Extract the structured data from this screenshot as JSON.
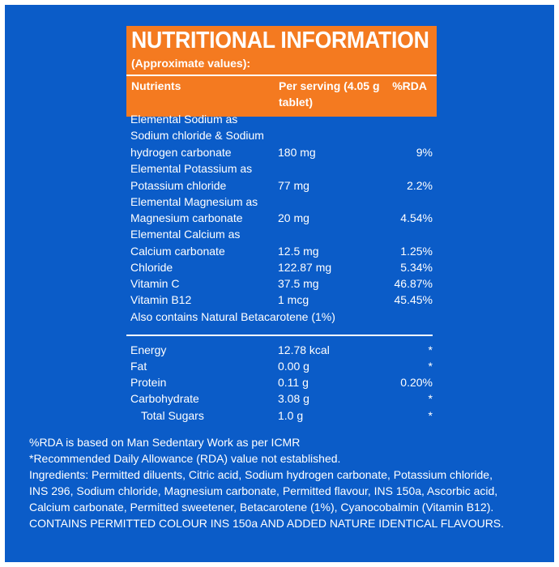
{
  "header": {
    "title": "NUTRITIONAL INFORMATION",
    "subtitle": "(Approximate values):",
    "col_nutrients": "Nutrients",
    "col_serving": "Per serving (4.05 g tablet)",
    "col_rda": "%RDA"
  },
  "rows": [
    {
      "n": "Elemental Sodium as"
    },
    {
      "n": "Sodium chloride & Sodium"
    },
    {
      "n": "hydrogen carbonate",
      "v": "180 mg",
      "r": "9%"
    },
    {
      "n": "Elemental Potassium as"
    },
    {
      "n": "Potassium chloride",
      "v": "77 mg",
      "r": "2.2%"
    },
    {
      "n": "Elemental Magnesium as"
    },
    {
      "n": "Magnesium carbonate",
      "v": "20 mg",
      "r": "4.54%"
    },
    {
      "n": "Elemental Calcium as"
    },
    {
      "n": "Calcium carbonate",
      "v": "12.5 mg",
      "r": "1.25%"
    },
    {
      "n": "Chloride",
      "v": "122.87 mg",
      "r": "5.34%"
    },
    {
      "n": "Vitamin C",
      "v": "37.5 mg",
      "r": "46.87%"
    },
    {
      "n": "Vitamin B12",
      "v": "1 mcg",
      "r": "45.45%"
    },
    {
      "n": "Also contains Natural Betacarotene (1%)"
    }
  ],
  "rows2": [
    {
      "n": "Energy",
      "v": "12.78 kcal",
      "r": "*"
    },
    {
      "n": "Fat",
      "v": "0.00 g",
      "r": "*"
    },
    {
      "n": "Protein",
      "v": "0.11 g",
      "r": "0.20%"
    },
    {
      "n": "Carbohydrate",
      "v": "3.08 g",
      "r": "*"
    },
    {
      "n": "Total Sugars",
      "v": "1.0 g",
      "r": "*"
    }
  ],
  "footer": {
    "line1": "%RDA is based on Man Sedentary Work as per ICMR",
    "line2": "*Recommended Daily Allowance (RDA) value not established.",
    "line3": "Ingredients: Permitted diluents, Citric acid, Sodium hydrogen carbonate, Potassium chloride,",
    "line4": "INS 296, Sodium chloride, Magnesium carbonate, Permitted flavour, INS 150a, Ascorbic acid,",
    "line5": "Calcium carbonate, Permitted sweetener, Betacarotene (1%), Cyanocobalmin (Vitamin B12).",
    "line6": "CONTAINS PERMITTED COLOUR INS 150a AND ADDED NATURE IDENTICAL FLAVOURS."
  },
  "colors": {
    "panel_blue": "#0b5cc8",
    "header_orange": "#f47a20",
    "text": "#ffffff"
  }
}
